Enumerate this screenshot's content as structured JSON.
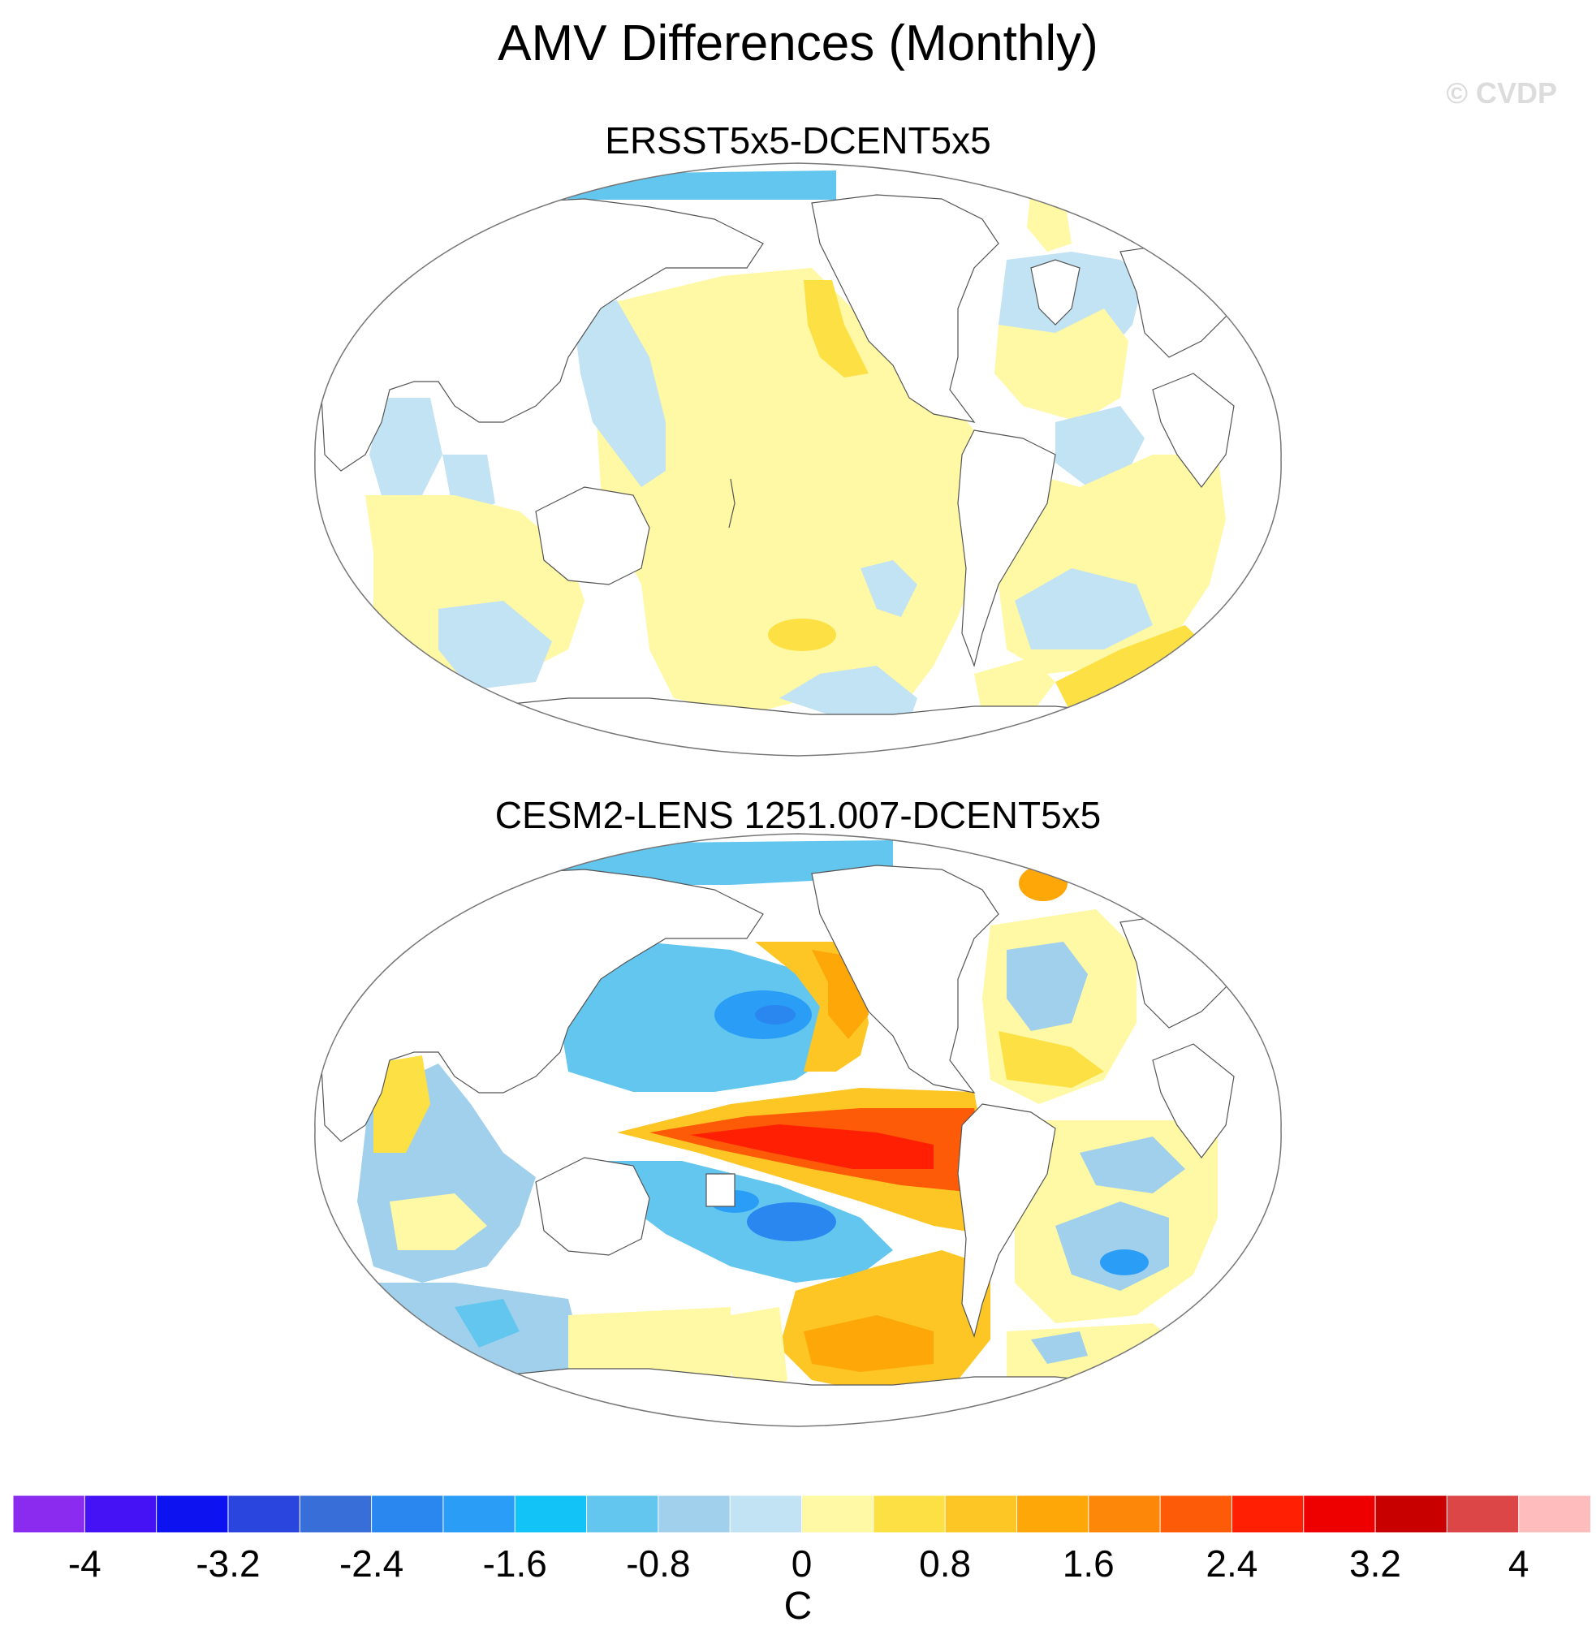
{
  "title": "AMV Differences (Monthly)",
  "watermark": "© CVDP",
  "chart_data": [
    {
      "type": "heatmap",
      "subtype": "global map (Robinson/Winkel projection)",
      "title": "ERSST5x5-DCENT5x5",
      "variable": "SST difference",
      "units": "C",
      "regions": [
        {
          "name": "Arctic",
          "value": -1.4
        },
        {
          "name": "North Pacific (west)",
          "value": -0.4
        },
        {
          "name": "Central & North Pacific",
          "value": 0.2
        },
        {
          "name": "Northeast Pacific coast",
          "value": 0.6
        },
        {
          "name": "North Atlantic subpolar",
          "value": -0.4
        },
        {
          "name": "North Atlantic subtropical",
          "value": 0.2
        },
        {
          "name": "Tropical Atlantic",
          "value": -0.4
        },
        {
          "name": "South Atlantic",
          "value": 0.2
        },
        {
          "name": "Southwest Atlantic",
          "value": 0.6
        },
        {
          "name": "Western Indian Ocean",
          "value": -0.4
        },
        {
          "name": "South Indian Ocean",
          "value": 0.2
        },
        {
          "name": "Southern Indian Ocean (south)",
          "value": -0.4
        },
        {
          "name": "Southeast Pacific",
          "value": -0.4
        },
        {
          "name": "South Pacific",
          "value": 0.6
        }
      ]
    },
    {
      "type": "heatmap",
      "subtype": "global map (Robinson/Winkel projection)",
      "title": "CESM2-LENS 1251.007-DCENT5x5",
      "variable": "SST difference",
      "units": "C",
      "regions": [
        {
          "name": "Arctic",
          "value": -1.4
        },
        {
          "name": "Greenland Sea",
          "value": 1.6
        },
        {
          "name": "Northwest Pacific",
          "value": -2.0
        },
        {
          "name": "Northeast Pacific coast",
          "value": 1.0
        },
        {
          "name": "Eastern equatorial Pacific",
          "value": 2.8
        },
        {
          "name": "Western tropical South Pacific",
          "value": -2.0
        },
        {
          "name": "Subtropical South Pacific",
          "value": 1.2
        },
        {
          "name": "North Atlantic",
          "value": -0.6
        },
        {
          "name": "South Atlantic",
          "value": -1.2
        },
        {
          "name": "Indian Ocean",
          "value": -0.4
        },
        {
          "name": "Arabian Sea",
          "value": 0.6
        },
        {
          "name": "Southern Ocean",
          "value": -0.6
        }
      ]
    }
  ],
  "colorbar": {
    "label": "C",
    "min": -4.4,
    "max": 4.4,
    "step": 0.4,
    "tick_labels": [
      "-4",
      "-3.2",
      "-2.4",
      "-1.6",
      "-0.8",
      "0",
      "0.8",
      "1.6",
      "2.4",
      "3.2",
      "4"
    ],
    "tick_values": [
      -4,
      -3.2,
      -2.4,
      -1.6,
      -0.8,
      0,
      0.8,
      1.6,
      2.4,
      3.2,
      4
    ],
    "colors": [
      "#8b2bf0",
      "#4512f5",
      "#0c12f0",
      "#2a45dd",
      "#376ed8",
      "#2a87f0",
      "#2a9ef7",
      "#11c3f7",
      "#63c6ee",
      "#a0d0ec",
      "#c2e3f3",
      "#fff8a4",
      "#fde043",
      "#fec624",
      "#fda709",
      "#fc8708",
      "#fd5b07",
      "#ff2004",
      "#ee0000",
      "#c80000",
      "#dd4646",
      "#ffbcbc"
    ]
  }
}
